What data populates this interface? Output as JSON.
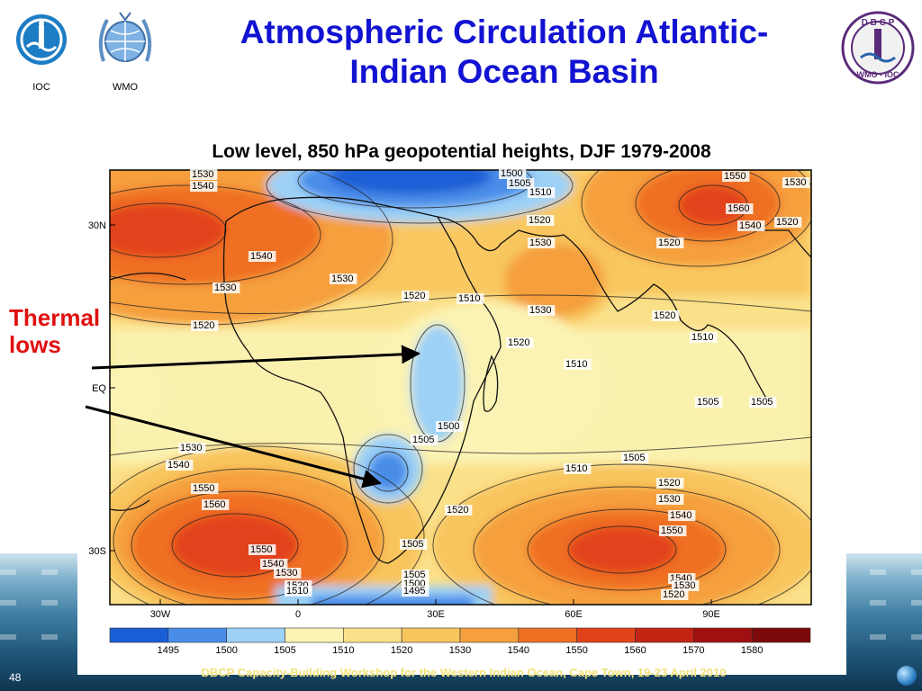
{
  "slide": {
    "title_line1": "Atmospheric Circulation Atlantic-",
    "title_line2": "Indian Ocean Basin",
    "subtitle": "Low level, 850 hPa geopotential heights, DJF 1979-2008",
    "annotation_line1": "Thermal",
    "annotation_line2": "lows",
    "footer": "DBCP Capacity-Building Workshop for the Western Indian Ocean, Cape Town, 19-23 April 2010",
    "slide_number": "48"
  },
  "logos": {
    "ioc_label": "IOC",
    "wmo_label": "WMO",
    "dbcp_top": "D B C P",
    "dbcp_bottom": "WMO - IOC"
  },
  "colors": {
    "title": "#1212d2",
    "annotation": "#e01010",
    "arrow": "#000000"
  },
  "chart_data": {
    "type": "heatmap",
    "title": "Low level, 850 hPa geopotential heights, DJF 1979-2008",
    "x_ticks": [
      "30W",
      "0",
      "30E",
      "60E",
      "90E"
    ],
    "y_ticks": [
      "30N",
      "EQ",
      "30S"
    ],
    "colorbar_levels": [
      "1495",
      "1500",
      "1505",
      "1510",
      "1520",
      "1530",
      "1540",
      "1550",
      "1560",
      "1570",
      "1580"
    ],
    "colorbar_colors": [
      "#1a5fd6",
      "#4a8de8",
      "#9dd1f6",
      "#fbf3b4",
      "#fbe08a",
      "#f8c55d",
      "#f59f3e",
      "#ef6f23",
      "#e2421a",
      "#c42413",
      "#a11010",
      "#7d0a0a"
    ],
    "contour_labels": [
      "1530",
      "1540",
      "1540",
      "1530",
      "1520",
      "1530",
      "1520",
      "1500",
      "1505",
      "1510",
      "1520",
      "1530",
      "1510",
      "1530",
      "1520",
      "1550",
      "1560",
      "1540",
      "1530",
      "1520",
      "1520",
      "1510",
      "1520",
      "1505",
      "1510",
      "1505",
      "1510",
      "1505",
      "1505",
      "1500",
      "1505",
      "1520",
      "1530",
      "1540",
      "1550",
      "1560",
      "1550",
      "1540",
      "1530",
      "1520",
      "1510",
      "1505",
      "1500",
      "1495",
      "1520",
      "1530",
      "1540",
      "1550",
      "1540",
      "1530",
      "1520"
    ],
    "contour_label_values": [
      1530,
      1540,
      1540,
      1530,
      1520,
      1530,
      1520,
      1500,
      1505,
      1510,
      1520,
      1530,
      1510,
      1530,
      1520,
      1550,
      1560,
      1540,
      1530,
      1520,
      1520,
      1510,
      1520,
      1505,
      1510,
      1505,
      1510,
      1505,
      1505,
      1500,
      1505,
      1520,
      1530,
      1540,
      1550,
      1560,
      1550,
      1540,
      1530,
      1520,
      1510,
      1505,
      1500,
      1495,
      1520,
      1530,
      1540,
      1550,
      1540,
      1530,
      1520
    ]
  }
}
